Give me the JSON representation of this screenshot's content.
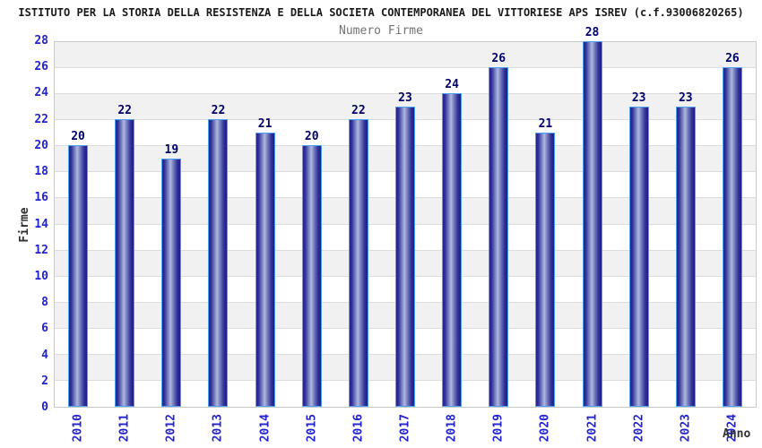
{
  "header": {
    "title": "ISTITUTO PER LA STORIA DELLA RESISTENZA E DELLA SOCIETA CONTEMPORANEA DEL VITTORIESE APS ISREV (c.f.93006820265)"
  },
  "chart_data": {
    "type": "bar",
    "title": "Numero Firme",
    "xlabel": "Anno",
    "ylabel": "Firme",
    "categories": [
      "2010",
      "2011",
      "2012",
      "2013",
      "2014",
      "2015",
      "2016",
      "2017",
      "2018",
      "2019",
      "2020",
      "2021",
      "2022",
      "2023",
      "2024"
    ],
    "values": [
      20,
      22,
      19,
      22,
      21,
      20,
      22,
      23,
      24,
      26,
      21,
      28,
      23,
      23,
      26
    ],
    "ylim": [
      0,
      28
    ],
    "ytick_step": 2,
    "grid": true,
    "legend": "none",
    "band_colors": {
      "gray": "#f1f1f1",
      "white": "#ffffff"
    },
    "colors": {
      "bar_edge": "#4da0f0",
      "bar_dark": "#23238c",
      "bar_light": "#b0b8e2",
      "tick_label": "#2323cd",
      "value_label": "#00006b",
      "title": "#737373",
      "header": "#1a1a1a",
      "axis_label": "#303030",
      "gridline": "#dcdcdc",
      "plot_border": "#c9c9c9"
    }
  }
}
